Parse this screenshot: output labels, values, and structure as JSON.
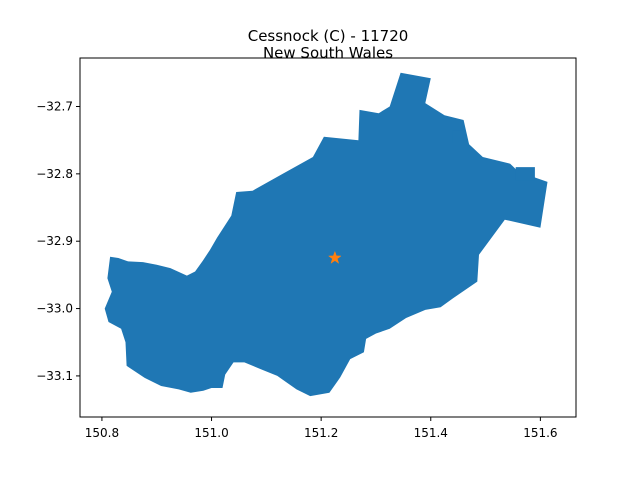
{
  "chart_data": {
    "type": "map",
    "title_line1": "Cessnock (C) - 11720",
    "title_line2": "New South Wales",
    "xlim": [
      150.76,
      151.665
    ],
    "ylim": [
      -33.161,
      -32.628
    ],
    "x_ticks": [
      150.8,
      151.0,
      151.2,
      151.4,
      151.6
    ],
    "x_tick_labels": [
      "150.8",
      "151.0",
      "151.2",
      "151.4",
      "151.6"
    ],
    "y_ticks": [
      -32.7,
      -32.8,
      -32.9,
      -33.0,
      -33.1
    ],
    "y_tick_labels": [
      "−32.7",
      "−32.8",
      "−32.9",
      "−33.0",
      "−33.1"
    ],
    "region_fill_color": "#1f77b4",
    "marker": {
      "x": 151.225,
      "y": -32.925,
      "color": "#ff7f0e",
      "shape": "star"
    },
    "region_outline": [
      [
        150.815,
        -32.923
      ],
      [
        150.83,
        -32.925
      ],
      [
        150.848,
        -32.93
      ],
      [
        150.875,
        -32.931
      ],
      [
        150.9,
        -32.935
      ],
      [
        150.925,
        -32.94
      ],
      [
        150.955,
        -32.951
      ],
      [
        150.97,
        -32.945
      ],
      [
        150.984,
        -32.929
      ],
      [
        150.997,
        -32.913
      ],
      [
        151.01,
        -32.895
      ],
      [
        151.036,
        -32.862
      ],
      [
        151.045,
        -32.827
      ],
      [
        151.075,
        -32.825
      ],
      [
        151.13,
        -32.8
      ],
      [
        151.185,
        -32.775
      ],
      [
        151.205,
        -32.745
      ],
      [
        151.268,
        -32.75
      ],
      [
        151.27,
        -32.705
      ],
      [
        151.305,
        -32.71
      ],
      [
        151.325,
        -32.7
      ],
      [
        151.345,
        -32.65
      ],
      [
        151.4,
        -32.658
      ],
      [
        151.39,
        -32.695
      ],
      [
        151.425,
        -32.713
      ],
      [
        151.46,
        -32.72
      ],
      [
        151.47,
        -32.756
      ],
      [
        151.495,
        -32.775
      ],
      [
        151.545,
        -32.785
      ],
      [
        151.56,
        -32.797
      ],
      [
        151.613,
        -32.812
      ],
      [
        151.6,
        -32.88
      ],
      [
        151.535,
        -32.868
      ],
      [
        151.488,
        -32.92
      ],
      [
        151.485,
        -32.96
      ],
      [
        151.44,
        -32.985
      ],
      [
        151.418,
        -32.998
      ],
      [
        151.39,
        -33.002
      ],
      [
        151.355,
        -33.014
      ],
      [
        151.325,
        -33.03
      ],
      [
        151.3,
        -33.037
      ],
      [
        151.282,
        -33.045
      ],
      [
        151.278,
        -33.065
      ],
      [
        151.253,
        -33.075
      ],
      [
        151.235,
        -33.102
      ],
      [
        151.215,
        -33.125
      ],
      [
        151.18,
        -33.13
      ],
      [
        151.155,
        -33.12
      ],
      [
        151.12,
        -33.1
      ],
      [
        151.09,
        -33.09
      ],
      [
        151.06,
        -33.08
      ],
      [
        151.04,
        -33.08
      ],
      [
        151.025,
        -33.098
      ],
      [
        151.02,
        -33.118
      ],
      [
        151.0,
        -33.118
      ],
      [
        150.985,
        -33.122
      ],
      [
        150.962,
        -33.125
      ],
      [
        150.94,
        -33.12
      ],
      [
        150.908,
        -33.115
      ],
      [
        150.878,
        -33.103
      ],
      [
        150.845,
        -33.085
      ],
      [
        150.843,
        -33.05
      ],
      [
        150.835,
        -33.03
      ],
      [
        150.812,
        -33.02
      ],
      [
        150.805,
        -33.0
      ],
      [
        150.818,
        -32.975
      ],
      [
        150.81,
        -32.955
      ]
    ],
    "inner_blocks": [
      [
        [
          151.44,
          -32.735
        ],
        [
          151.46,
          -32.735
        ],
        [
          151.46,
          -32.755
        ],
        [
          151.44,
          -32.755
        ]
      ],
      [
        [
          151.555,
          -32.79
        ],
        [
          151.59,
          -32.79
        ],
        [
          151.59,
          -32.81
        ],
        [
          151.555,
          -32.81
        ]
      ]
    ]
  }
}
